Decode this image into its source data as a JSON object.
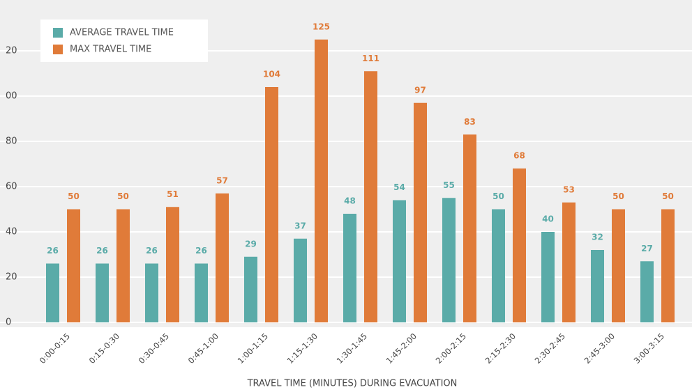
{
  "chart_data": {
    "type": "bar",
    "x_label": "TRAVEL TIME (MINUTES) DURING EVACUATION",
    "categories": [
      "0:00-0:15",
      "0:15-0:30",
      "0:30-0:45",
      "0:45-1:00",
      "1:00-1:15",
      "1:15-1:30",
      "1:30-1:45",
      "1:45-2:00",
      "2:00-2:15",
      "2:15-2:30",
      "2:30-2:45",
      "2:45-3:00",
      "3:00-3:15"
    ],
    "series": [
      {
        "name": "AVERAGE TRAVEL TIME",
        "color": "#5aaba8",
        "values": [
          26,
          26,
          26,
          26,
          29,
          37,
          48,
          54,
          55,
          50,
          40,
          32,
          27
        ]
      },
      {
        "name": "MAX TRAVEL TIME",
        "color": "#e07b39",
        "values": [
          50,
          50,
          51,
          57,
          104,
          125,
          111,
          97,
          83,
          68,
          53,
          50,
          50
        ]
      }
    ],
    "ylim": [
      0,
      140
    ],
    "yticks": [
      0,
      20,
      40,
      60,
      80,
      {
        "value": 100,
        "label": "00"
      },
      {
        "value": 120,
        "label": "20"
      }
    ],
    "grid": true,
    "legend": "upper left"
  }
}
